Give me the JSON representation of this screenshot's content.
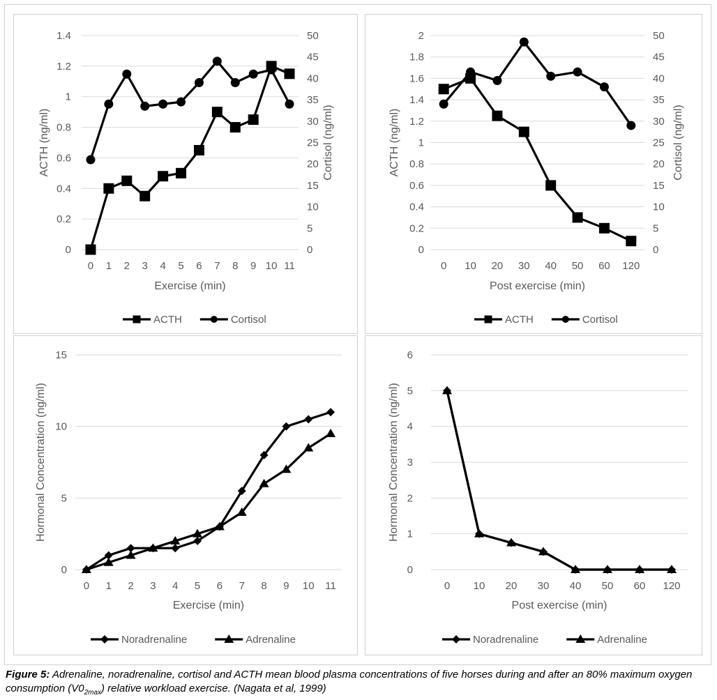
{
  "caption": {
    "label": "Figure 5:",
    "text_before_sub": " Adrenaline, noradrenaline, cortisol and ACTH mean blood plasma concentrations of five horses during and after an 80% maximum oxygen consumption (V0",
    "sub": "2max",
    "text_after_sub": ") relative workload exercise. (Nagata et al, 1999)"
  },
  "colors": {
    "series": "#000000",
    "grid": "#d9d9d9",
    "text": "#595959",
    "border": "#cfcfcf"
  },
  "chart_data": [
    {
      "type": "line",
      "xlabel": "Exercise (min)",
      "ylabel": "ACTH (ng/ml)",
      "y2label": "Cortisol (ng/ml)",
      "categories": [
        "0",
        "1",
        "2",
        "3",
        "4",
        "5",
        "6",
        "7",
        "8",
        "9",
        "10",
        "11"
      ],
      "ylim": [
        0,
        1.4
      ],
      "yticks": [
        "0",
        "0.2",
        "0.4",
        "0.6",
        "0.8",
        "1",
        "1.2",
        "1.4"
      ],
      "y2lim": [
        0,
        50
      ],
      "y2ticks": [
        "0",
        "5",
        "10",
        "15",
        "20",
        "25",
        "30",
        "35",
        "40",
        "45",
        "50"
      ],
      "grid": true,
      "legend": "bottom",
      "series": [
        {
          "name": "ACTH",
          "axis": "left",
          "marker": "square",
          "values": [
            0,
            0.4,
            0.45,
            0.35,
            0.48,
            0.5,
            0.65,
            0.9,
            0.8,
            0.85,
            1.2,
            1.15
          ]
        },
        {
          "name": "Cortisol",
          "axis": "right",
          "marker": "circle",
          "values": [
            21,
            34,
            41,
            33.5,
            34,
            34.5,
            39,
            44,
            39,
            41,
            42,
            34
          ]
        }
      ]
    },
    {
      "type": "line",
      "xlabel": "Post exercise (min)",
      "ylabel": "ACTH (ng/ml)",
      "y2label": "Cortisol (ng/ml)",
      "categories": [
        "0",
        "10",
        "20",
        "30",
        "40",
        "50",
        "60",
        "120"
      ],
      "ylim": [
        0,
        2
      ],
      "yticks": [
        "0",
        "0.2",
        "0.4",
        "0.6",
        "0.8",
        "1",
        "1.2",
        "1.4",
        "1.6",
        "1.8",
        "2"
      ],
      "y2lim": [
        0,
        50
      ],
      "y2ticks": [
        "0",
        "5",
        "10",
        "15",
        "20",
        "25",
        "30",
        "35",
        "40",
        "45",
        "50"
      ],
      "grid": true,
      "legend": "bottom",
      "series": [
        {
          "name": "ACTH",
          "axis": "left",
          "marker": "square",
          "values": [
            1.5,
            1.6,
            1.25,
            1.1,
            0.6,
            0.3,
            0.2,
            0.08
          ]
        },
        {
          "name": "Cortisol",
          "axis": "right",
          "marker": "circle",
          "values": [
            34,
            41.5,
            39.5,
            48.5,
            40.5,
            41.5,
            38,
            29
          ]
        }
      ]
    },
    {
      "type": "line",
      "xlabel": "Exercise (min)",
      "ylabel": "Hormonal Concentration (ng/ml)",
      "categories": [
        "0",
        "1",
        "2",
        "3",
        "4",
        "5",
        "6",
        "7",
        "8",
        "9",
        "10",
        "11"
      ],
      "ylim": [
        0,
        15
      ],
      "yticks": [
        "0",
        "5",
        "10",
        "15"
      ],
      "grid": true,
      "legend": "bottom",
      "series": [
        {
          "name": "Noradrenaline",
          "axis": "left",
          "marker": "diamond",
          "values": [
            0,
            1,
            1.5,
            1.5,
            1.5,
            2,
            3,
            5.5,
            8,
            10,
            10.5,
            11
          ]
        },
        {
          "name": "Adrenaline",
          "axis": "left",
          "marker": "triangle",
          "values": [
            0,
            0.5,
            1,
            1.5,
            2,
            2.5,
            3,
            4,
            6,
            7,
            8.5,
            9.5
          ]
        }
      ]
    },
    {
      "type": "line",
      "xlabel": "Post exercise (min)",
      "ylabel": "Hormonal Concentration (ng/ml)",
      "categories": [
        "0",
        "10",
        "20",
        "30",
        "40",
        "50",
        "60",
        "120"
      ],
      "ylim": [
        0,
        6
      ],
      "yticks": [
        "0",
        "1",
        "2",
        "3",
        "4",
        "5",
        "6"
      ],
      "grid": true,
      "legend": "bottom",
      "series": [
        {
          "name": "Noradrenaline",
          "axis": "left",
          "marker": "diamond",
          "values": [
            5,
            1,
            0.75,
            0.5,
            0,
            0,
            0,
            0
          ]
        },
        {
          "name": "Adrenaline",
          "axis": "left",
          "marker": "triangle",
          "values": [
            5,
            1,
            0.75,
            0.5,
            0,
            0,
            0,
            0
          ]
        }
      ]
    }
  ]
}
